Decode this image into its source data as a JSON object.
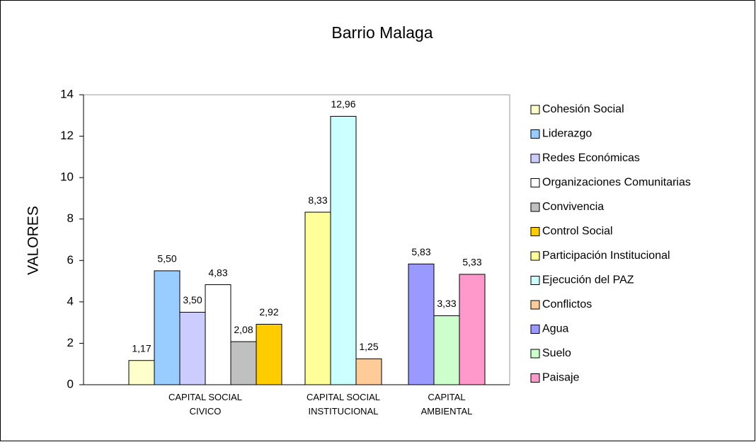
{
  "chart_data": {
    "type": "bar",
    "title": "Barrio Malaga",
    "y_label": "VALORES",
    "categories": [
      "CAPITAL SOCIAL CIVICO",
      "CAPITAL SOCIAL INSTITUCIONAL",
      "CAPITAL AMBIENTAL"
    ],
    "ylim": [
      0,
      14
    ],
    "yticks": [
      0,
      2,
      4,
      6,
      8,
      10,
      12,
      14
    ],
    "grid": false,
    "legend": "right",
    "series": [
      {
        "name": "Cohesión Social",
        "color": "#ffffcc",
        "values": [
          1.17,
          null,
          null
        ],
        "value_labels": [
          "1,17",
          null,
          null
        ]
      },
      {
        "name": "Liderazgo",
        "color": "#99ccff",
        "values": [
          5.5,
          null,
          null
        ],
        "value_labels": [
          "5,50",
          null,
          null
        ]
      },
      {
        "name": "Redes Económicas",
        "color": "#ccccff",
        "values": [
          3.5,
          null,
          null
        ],
        "value_labels": [
          "3,50",
          null,
          null
        ]
      },
      {
        "name": "Organizaciones Comunitarias",
        "color": "#ffffff",
        "values": [
          4.83,
          null,
          null
        ],
        "value_labels": [
          "4,83",
          null,
          null
        ]
      },
      {
        "name": "Convivencia",
        "color": "#c0c0c0",
        "values": [
          2.08,
          null,
          null
        ],
        "value_labels": [
          "2,08",
          null,
          null
        ]
      },
      {
        "name": "Control Social",
        "color": "#ffcc00",
        "values": [
          2.92,
          null,
          null
        ],
        "value_labels": [
          "2,92",
          null,
          null
        ]
      },
      {
        "name": "Participación Institucional",
        "color": "#ffff99",
        "values": [
          null,
          8.33,
          null
        ],
        "value_labels": [
          null,
          "8,33",
          null
        ]
      },
      {
        "name": "Ejecución del PAZ",
        "color": "#ccffff",
        "values": [
          null,
          12.96,
          null
        ],
        "value_labels": [
          null,
          "12,96",
          null
        ]
      },
      {
        "name": "Conflictos",
        "color": "#ffcc99",
        "values": [
          null,
          1.25,
          null
        ],
        "value_labels": [
          null,
          "1,25",
          null
        ]
      },
      {
        "name": "Agua",
        "color": "#9999ff",
        "values": [
          null,
          null,
          5.83
        ],
        "value_labels": [
          null,
          null,
          "5,83"
        ]
      },
      {
        "name": "Suelo",
        "color": "#ccffcc",
        "values": [
          null,
          null,
          3.33
        ],
        "value_labels": [
          null,
          null,
          "3,33"
        ]
      },
      {
        "name": "Paisaje",
        "color": "#ff99cc",
        "values": [
          null,
          null,
          5.33
        ],
        "value_labels": [
          null,
          null,
          "5,33"
        ]
      }
    ]
  }
}
